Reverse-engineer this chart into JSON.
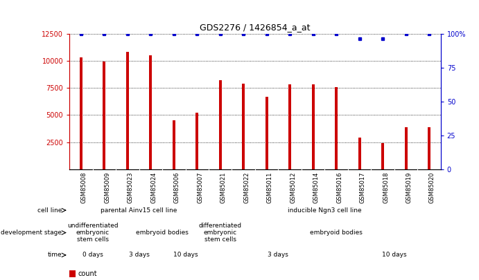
{
  "title": "GDS2276 / 1426854_a_at",
  "samples": [
    "GSM85008",
    "GSM85009",
    "GSM85023",
    "GSM85024",
    "GSM85006",
    "GSM85007",
    "GSM85021",
    "GSM85022",
    "GSM85011",
    "GSM85012",
    "GSM85014",
    "GSM85016",
    "GSM85017",
    "GSM85018",
    "GSM85019",
    "GSM85020"
  ],
  "counts": [
    10300,
    9900,
    10800,
    10500,
    4500,
    5200,
    8200,
    7900,
    6700,
    7850,
    7850,
    7600,
    2900,
    2450,
    3900,
    3900
  ],
  "percentile_ranks": [
    100,
    100,
    100,
    100,
    100,
    100,
    100,
    100,
    100,
    100,
    100,
    100,
    96,
    96,
    100,
    100
  ],
  "ylim_left": [
    0,
    12500
  ],
  "ylim_right": [
    0,
    100
  ],
  "yticks_left": [
    2500,
    5000,
    7500,
    10000,
    12500
  ],
  "yticks_right": [
    0,
    25,
    50,
    75,
    100
  ],
  "bar_color": "#cc0000",
  "dot_color": "#0000cc",
  "background_color": "#ffffff",
  "label_bg_color": "#d0d0d0",
  "cell_line_row": {
    "label": "cell line",
    "groups": [
      {
        "text": "parental Ainv15 cell line",
        "start": 0,
        "end": 6,
        "color": "#90ee90"
      },
      {
        "text": "inducible Ngn3 cell line",
        "start": 6,
        "end": 16,
        "color": "#90ee90"
      }
    ]
  },
  "dev_stage_row": {
    "label": "development stage",
    "groups": [
      {
        "text": "undifferentiated\nembryonic\nstem cells",
        "start": 0,
        "end": 2,
        "color": "#9090dd"
      },
      {
        "text": "embryoid bodies",
        "start": 2,
        "end": 6,
        "color": "#9090dd"
      },
      {
        "text": "differentiated\nembryonic\nstem cells",
        "start": 6,
        "end": 7,
        "color": "#9090dd"
      },
      {
        "text": "embryoid bodies",
        "start": 7,
        "end": 16,
        "color": "#9090dd"
      }
    ]
  },
  "time_row": {
    "label": "time",
    "groups": [
      {
        "text": "0 days",
        "start": 0,
        "end": 2,
        "color": "#f4a0a0"
      },
      {
        "text": "3 days",
        "start": 2,
        "end": 4,
        "color": "#f4a0a0"
      },
      {
        "text": "10 days",
        "start": 4,
        "end": 6,
        "color": "#cc6666"
      },
      {
        "text": "3 days",
        "start": 6,
        "end": 12,
        "color": "#f4a0a0"
      },
      {
        "text": "10 days",
        "start": 12,
        "end": 16,
        "color": "#cc6666"
      }
    ]
  }
}
